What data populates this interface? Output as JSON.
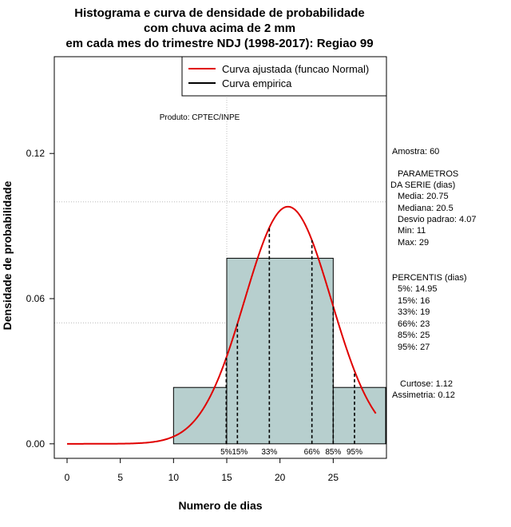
{
  "chart_data": {
    "type": "bar",
    "title": [
      "Histograma e curva de densidade de probabilidade",
      "com chuva acima de 2 mm",
      "em cada mes do trimestre NDJ (1998-2017): Regiao 99"
    ],
    "xlabel": "Numero de dias",
    "ylabel": "Densidade de probabilidade",
    "xlim": [
      -1.2,
      30
    ],
    "ylim": [
      -0.006,
      0.16
    ],
    "x_ticks": [
      "0",
      "5",
      "10",
      "15",
      "20",
      "25"
    ],
    "x_tick_values": [
      0,
      5,
      10,
      15,
      20,
      25
    ],
    "y_ticks": [
      "0.00",
      "0.06",
      "0.12"
    ],
    "y_tick_values": [
      0,
      0.06,
      0.12
    ],
    "grid": true,
    "grid_x": [
      15,
      30
    ],
    "grid_y": [
      0.05,
      0.1
    ],
    "bins": [
      {
        "from": 10,
        "to": 15,
        "density": 0.0233
      },
      {
        "from": 15,
        "to": 25,
        "density": 0.0767
      },
      {
        "from": 25,
        "to": 30,
        "density": 0.0233
      }
    ],
    "normal_fit": {
      "mean": 20.75,
      "sd": 4.07,
      "x_from": 0,
      "x_to": 29
    },
    "percentile_lines": [
      {
        "label": "5%",
        "x": 14.95
      },
      {
        "label": "15%",
        "x": 16
      },
      {
        "label": "33%",
        "x": 19
      },
      {
        "label": "66%",
        "x": 23
      },
      {
        "label": "85%",
        "x": 25
      },
      {
        "label": "95%",
        "x": 27
      }
    ],
    "legend": {
      "position": "top-right",
      "entries": [
        {
          "label": "Curva ajustada (funcao Normal)",
          "color": "#e00000"
        },
        {
          "label": "Curva empirica",
          "color": "#000000"
        }
      ]
    },
    "annotation": "Produto: CPTEC/INPE",
    "side_panel": {
      "amostra": "Amostra: 60",
      "param_header": [
        " PARAMETROS",
        "DA SERIE (dias)"
      ],
      "params": [
        "Media: 20.75",
        "Mediana: 20.5",
        "Desvio padrao: 4.07",
        "Min: 11",
        "Max: 29"
      ],
      "perc_header": "PERCENTIS (dias)",
      "percentis": [
        "5%: 14.95",
        "15%: 16",
        "33%: 19",
        "66%: 23",
        "85%: 25",
        "95%: 27"
      ],
      "curtose": "Curtose: 1.12",
      "assimetria": "Assimetria: 0.12"
    },
    "colors": {
      "bar_fill": "#b7cfce",
      "curve": "#e00000",
      "grid": "#b0b0b0",
      "lines": "#000000"
    }
  }
}
